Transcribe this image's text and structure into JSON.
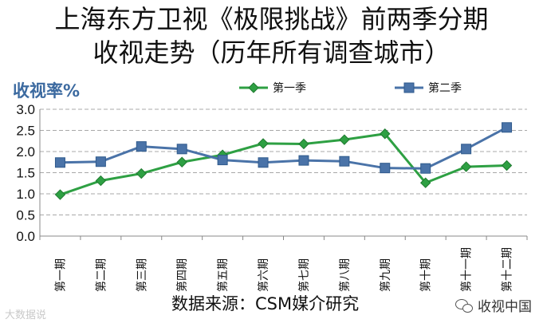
{
  "title_line1": "上海东方卫视《极限挑战》前两季分期",
  "title_line2": "收视走势（历年所有调查城市）",
  "source": "数据来源：CSM媒介研究",
  "watermark_left": "大数据说",
  "watermark_right": "收视中国",
  "chart_data": {
    "type": "line",
    "ylabel": "收视率%",
    "ylim": [
      0,
      3.0
    ],
    "yticks": [
      "0.0",
      "0.5",
      "1.0",
      "1.5",
      "2.0",
      "2.5",
      "3.0"
    ],
    "grid": true,
    "legend_position": "top",
    "categories": [
      "第一期",
      "第二期",
      "第三期",
      "第四期",
      "第五期",
      "第六期",
      "第七期",
      "第八期",
      "第九期",
      "第十期",
      "第十一期",
      "第十二期"
    ],
    "series": [
      {
        "name": "第一季",
        "color": "#2ea043",
        "marker": "diamond",
        "values": [
          0.98,
          1.31,
          1.48,
          1.75,
          1.92,
          2.19,
          2.18,
          2.28,
          2.42,
          1.26,
          1.64,
          1.67
        ]
      },
      {
        "name": "第二季",
        "color": "#4a73a8",
        "marker": "square",
        "values": [
          1.74,
          1.76,
          2.12,
          2.06,
          1.8,
          1.74,
          1.79,
          1.77,
          1.61,
          1.6,
          2.06,
          2.57
        ]
      }
    ]
  }
}
